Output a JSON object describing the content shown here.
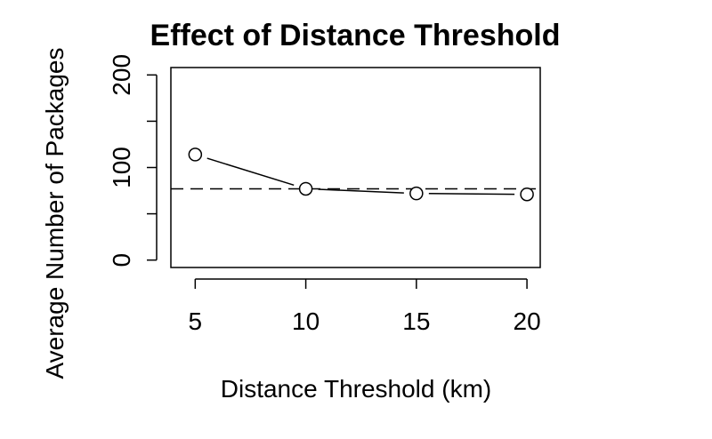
{
  "chart_data": {
    "type": "line",
    "title": "Effect of Distance Threshold",
    "xlabel": "Distance Threshold (km)",
    "ylabel": "Average Number of Packages",
    "x": [
      5,
      10,
      15,
      20
    ],
    "series": [
      {
        "values": [
          114,
          77,
          72,
          71
        ]
      }
    ],
    "reference_line": {
      "y": 77,
      "style": "dashed"
    },
    "xticks": [
      5,
      10,
      15,
      20
    ],
    "yticks": [
      0,
      50,
      100,
      150,
      200
    ],
    "ytick_labels": [
      "0",
      "",
      "100",
      "",
      "200"
    ],
    "xlim": [
      3.9,
      20.6
    ],
    "ylim": [
      -8,
      208
    ],
    "grid": false
  }
}
